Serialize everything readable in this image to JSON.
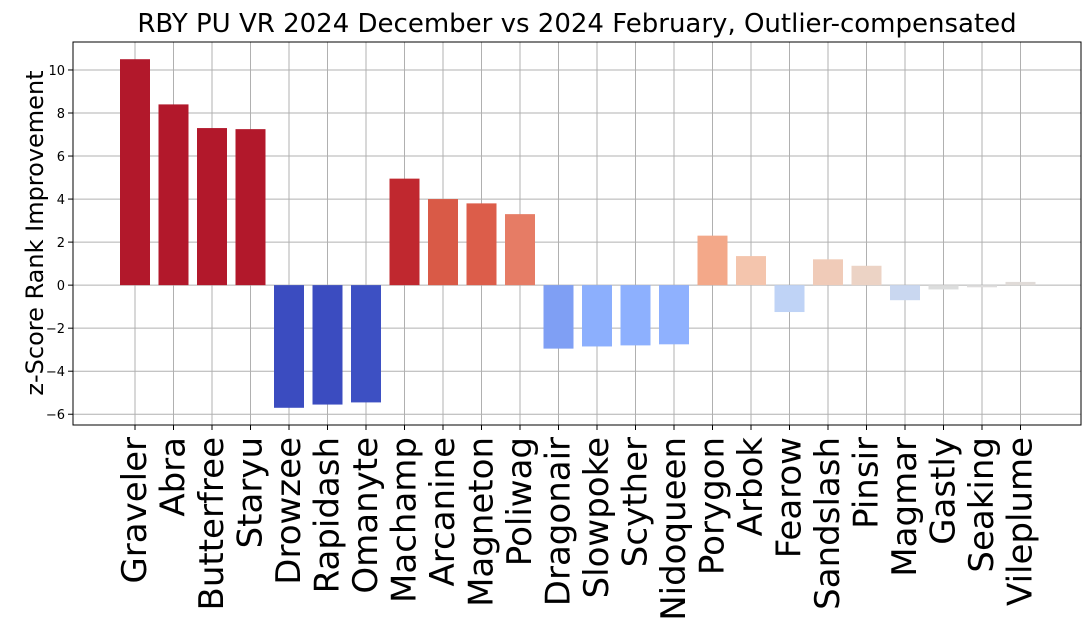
{
  "chart_data": {
    "type": "bar",
    "title": "RBY PU VR 2024 December vs 2024 February, Outlier-compensated",
    "xlabel": "",
    "ylabel": "z-Score Rank Improvement",
    "ylim": [
      -6.5,
      11.3
    ],
    "yticks": [
      -6,
      -4,
      -2,
      0,
      2,
      4,
      6,
      8,
      10
    ],
    "grid": true,
    "categories": [
      "Graveler",
      "Abra",
      "Butterfree",
      "Staryu",
      "Drowzee",
      "Rapidash",
      "Omanyte",
      "Machamp",
      "Arcanine",
      "Magneton",
      "Poliwag",
      "Dragonair",
      "Slowpoke",
      "Scyther",
      "Nidoqueen",
      "Porygon",
      "Arbok",
      "Fearow",
      "Sandslash",
      "Pinsir",
      "Magmar",
      "Gastly",
      "Seaking",
      "Vileplume"
    ],
    "values": [
      10.5,
      8.4,
      7.3,
      7.25,
      -5.7,
      -5.55,
      -5.45,
      4.95,
      4.0,
      3.8,
      3.3,
      -2.95,
      -2.85,
      -2.8,
      -2.75,
      2.3,
      1.35,
      -1.25,
      1.2,
      0.9,
      -0.7,
      -0.2,
      -0.1,
      0.15
    ],
    "colors": [
      "#b2182b",
      "#b2182b",
      "#b2182b",
      "#b2182b",
      "#3b4cc0",
      "#3b4cc0",
      "#3d50c3",
      "#c0282f",
      "#d95a47",
      "#dc5d4a",
      "#e67c65",
      "#7f9ff4",
      "#8caffd",
      "#8db0fe",
      "#8fb1fe",
      "#f3a889",
      "#f4c5ad",
      "#bfd3f6",
      "#f0cbb8",
      "#ecd3c5",
      "#c9d7f0",
      "#dcdddd",
      "#dddcdc",
      "#e0dbd8"
    ]
  }
}
